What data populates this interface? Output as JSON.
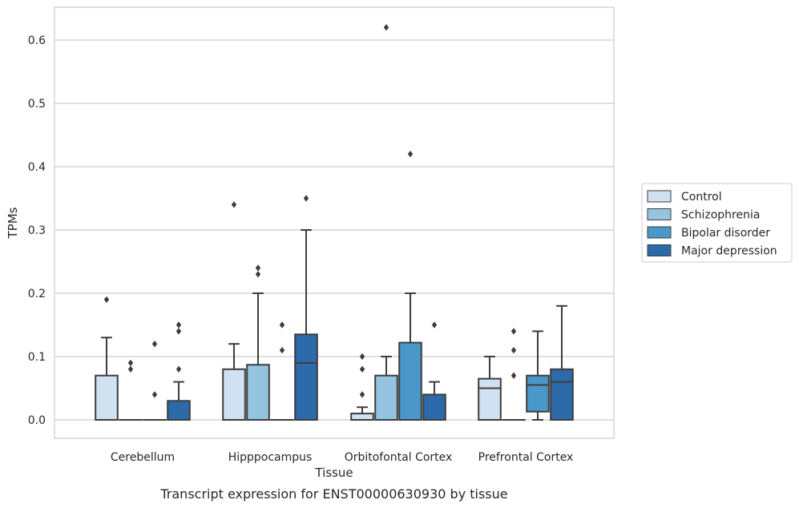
{
  "caption": "Transcript expression for ENST00000630930 by tissue",
  "colors": {
    "Control": "#d0e1f2",
    "Schizophrenia": "#94c4df",
    "Bipolar disorder": "#4a98c9",
    "Major depression": "#2d6aa9",
    "edge": "#3d3d3d",
    "grid": "#cccccc",
    "frame": "#cccccc"
  },
  "chart_data": {
    "type": "box",
    "xlabel": "Tissue",
    "ylabel": "TPMs",
    "ylim": [
      -0.03,
      0.655
    ],
    "yticks": [
      0.0,
      0.1,
      0.2,
      0.3,
      0.4,
      0.5,
      0.6
    ],
    "ytick_labels": [
      "0.0",
      "0.1",
      "0.2",
      "0.3",
      "0.4",
      "0.5",
      "0.6"
    ],
    "grid": "horizontal",
    "legend_placement": "right",
    "categories": [
      "Cerebellum",
      "Hipppocampus",
      "Orbitofontal Cortex",
      "Prefrontal Cortex"
    ],
    "series": [
      {
        "name": "Control",
        "boxes": [
          {
            "q1": 0.0,
            "median": 0.0,
            "q3": 0.07,
            "whisker_low": 0.0,
            "whisker_high": 0.13,
            "outliers": [
              0.19
            ]
          },
          {
            "q1": 0.0,
            "median": 0.0,
            "q3": 0.08,
            "whisker_low": 0.0,
            "whisker_high": 0.12,
            "outliers": [
              0.34
            ]
          },
          {
            "q1": 0.0,
            "median": 0.0,
            "q3": 0.01,
            "whisker_low": 0.0,
            "whisker_high": 0.02,
            "outliers": [
              0.04,
              0.08,
              0.1
            ]
          },
          {
            "q1": 0.0,
            "median": 0.05,
            "q3": 0.065,
            "whisker_low": 0.0,
            "whisker_high": 0.1,
            "outliers": []
          }
        ]
      },
      {
        "name": "Schizophrenia",
        "boxes": [
          {
            "q1": 0.0,
            "median": 0.0,
            "q3": 0.0,
            "whisker_low": 0.0,
            "whisker_high": 0.0,
            "outliers": [
              0.08,
              0.09
            ]
          },
          {
            "q1": 0.0,
            "median": 0.0,
            "q3": 0.087,
            "whisker_low": 0.0,
            "whisker_high": 0.2,
            "outliers": [
              0.23,
              0.24
            ]
          },
          {
            "q1": 0.0,
            "median": 0.0,
            "q3": 0.07,
            "whisker_low": 0.0,
            "whisker_high": 0.1,
            "outliers": [
              0.62
            ]
          },
          {
            "q1": 0.0,
            "median": 0.0,
            "q3": 0.0,
            "whisker_low": 0.0,
            "whisker_high": 0.0,
            "outliers": [
              0.07,
              0.11,
              0.14
            ]
          }
        ]
      },
      {
        "name": "Bipolar disorder",
        "boxes": [
          {
            "q1": 0.0,
            "median": 0.0,
            "q3": 0.0,
            "whisker_low": 0.0,
            "whisker_high": 0.0,
            "outliers": [
              0.04,
              0.12
            ]
          },
          {
            "q1": 0.0,
            "median": 0.0,
            "q3": 0.0,
            "whisker_low": 0.0,
            "whisker_high": 0.0,
            "outliers": [
              0.11,
              0.15
            ]
          },
          {
            "q1": 0.0,
            "median": 0.0,
            "q3": 0.122,
            "whisker_low": 0.0,
            "whisker_high": 0.2,
            "outliers": [
              0.42
            ]
          },
          {
            "q1": 0.013,
            "median": 0.055,
            "q3": 0.07,
            "whisker_low": 0.0,
            "whisker_high": 0.14,
            "outliers": []
          }
        ]
      },
      {
        "name": "Major depression",
        "boxes": [
          {
            "q1": 0.0,
            "median": 0.0,
            "q3": 0.03,
            "whisker_low": 0.0,
            "whisker_high": 0.06,
            "outliers": [
              0.08,
              0.14,
              0.15
            ]
          },
          {
            "q1": 0.0,
            "median": 0.09,
            "q3": 0.135,
            "whisker_low": 0.0,
            "whisker_high": 0.3,
            "outliers": [
              0.35
            ]
          },
          {
            "q1": 0.0,
            "median": 0.0,
            "q3": 0.04,
            "whisker_low": 0.0,
            "whisker_high": 0.06,
            "outliers": [
              0.15
            ]
          },
          {
            "q1": 0.0,
            "median": 0.06,
            "q3": 0.08,
            "whisker_low": 0.0,
            "whisker_high": 0.18,
            "outliers": []
          }
        ]
      }
    ]
  }
}
